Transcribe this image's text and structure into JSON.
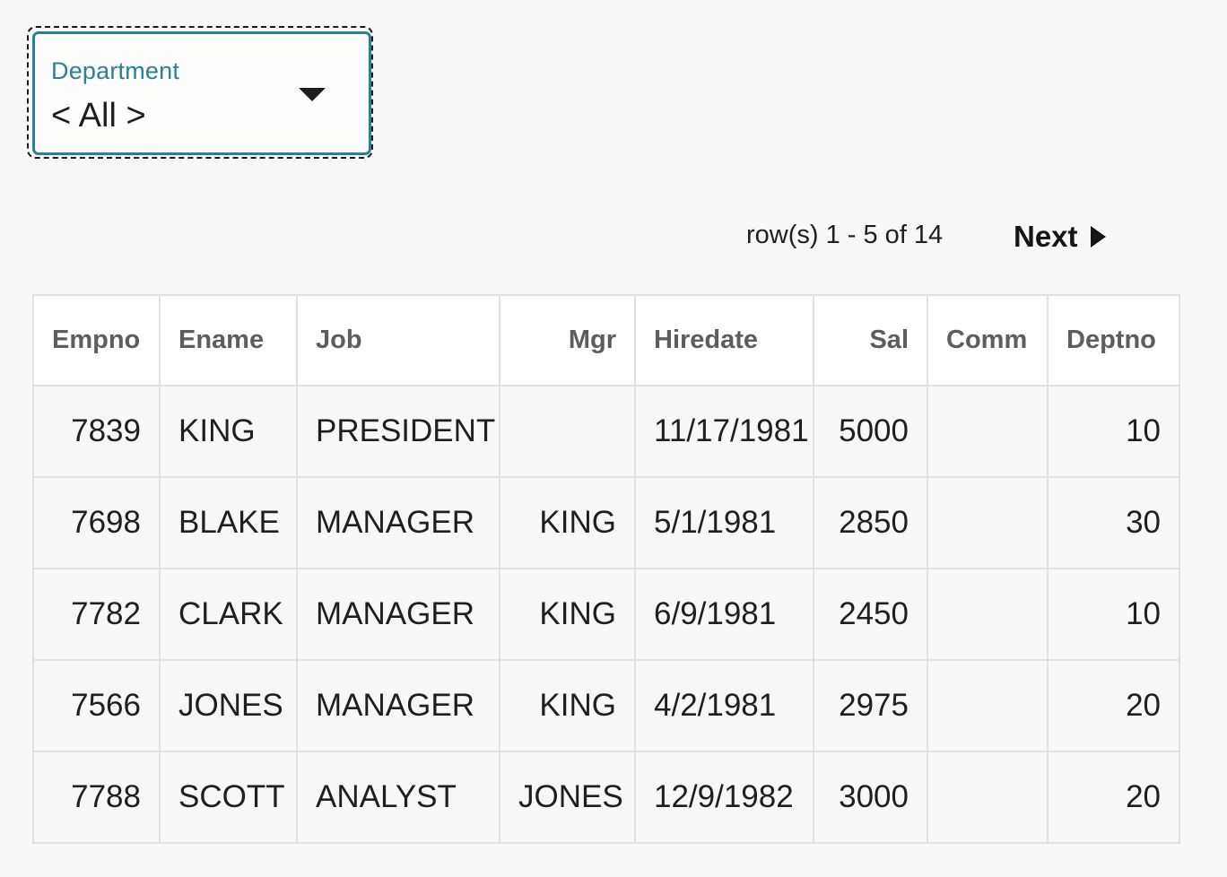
{
  "filter": {
    "label": "Department",
    "value": "< All >"
  },
  "pagination": {
    "rows_info": "row(s) 1 - 5 of 14",
    "next_label": "Next"
  },
  "table": {
    "headers": [
      "Empno",
      "Ename",
      "Job",
      "Mgr",
      "Hiredate",
      "Sal",
      "Comm",
      "Deptno"
    ],
    "rows": [
      [
        "7839",
        "KING",
        "PRESIDENT",
        "",
        "11/17/1981",
        "5000",
        "",
        "10"
      ],
      [
        "7698",
        "BLAKE",
        "MANAGER",
        "KING",
        "5/1/1981",
        "2850",
        "",
        "30"
      ],
      [
        "7782",
        "CLARK",
        "MANAGER",
        "KING",
        "6/9/1981",
        "2450",
        "",
        "10"
      ],
      [
        "7566",
        "JONES",
        "MANAGER",
        "KING",
        "4/2/1981",
        "2975",
        "",
        "20"
      ],
      [
        "7788",
        "SCOTT",
        "ANALYST",
        "JONES",
        "12/9/1982",
        "3000",
        "",
        "20"
      ]
    ]
  },
  "icons": {
    "select_caret": "caret-down-icon",
    "next": "triangle-right-icon"
  },
  "colors": {
    "accent": "#2b7f96",
    "background": "#f8f7f5",
    "border": "#e3e1dd",
    "header_text": "#5e5d5a"
  }
}
